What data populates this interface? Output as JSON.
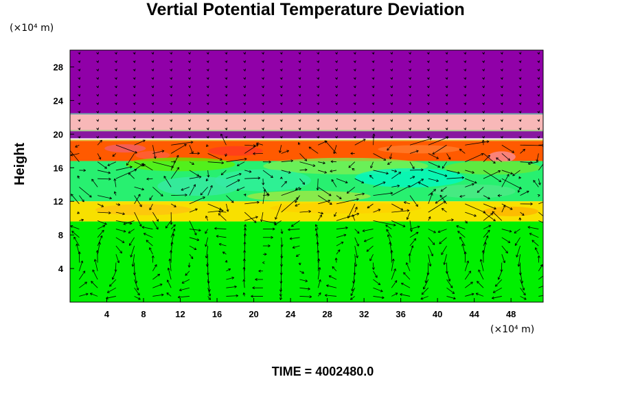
{
  "chart_data": {
    "type": "heatmap",
    "title": "Vertial Potential Temperature Deviation",
    "ylabel": "Height",
    "xlabel": "",
    "x_unit": "(×10⁴ m)",
    "y_unit": "(×10⁴ m)",
    "xlim": [
      0,
      51.5
    ],
    "ylim": [
      0,
      30
    ],
    "x_ticks": [
      "4",
      "8",
      "12",
      "16",
      "20",
      "24",
      "28",
      "32",
      "36",
      "40",
      "44",
      "48"
    ],
    "y_ticks": [
      "4",
      "8",
      "12",
      "16",
      "20",
      "24",
      "28"
    ],
    "x_tick_values": [
      4,
      8,
      12,
      16,
      20,
      24,
      28,
      32,
      36,
      40,
      44,
      48
    ],
    "y_tick_values": [
      4,
      8,
      12,
      16,
      20,
      24,
      28
    ],
    "footer": "TIME = 4002480.0",
    "color_layers": [
      {
        "y0": 22.4,
        "y1": 30.0,
        "color": "#9000a8",
        "label": "upper layer"
      },
      {
        "y0": 20.4,
        "y1": 22.4,
        "color": "#f8b8b8",
        "label": "pink band"
      },
      {
        "y0": 19.5,
        "y1": 20.4,
        "color": "#8818a0",
        "label": "thin purple band"
      },
      {
        "y0": 16.8,
        "y1": 19.2,
        "color": "#ff5a00",
        "label": "warm band"
      },
      {
        "y0": 12.0,
        "y1": 16.8,
        "color": "#28f070",
        "label": "mid layer"
      },
      {
        "y0": 9.6,
        "y1": 12.0,
        "color": "#f8e000",
        "label": "yellow band"
      },
      {
        "y0": 0.0,
        "y1": 9.6,
        "color": "#00f000",
        "label": "lower layer"
      }
    ],
    "vector_field": "circulation cells in lower layer, turbulent flow in mid layers"
  }
}
